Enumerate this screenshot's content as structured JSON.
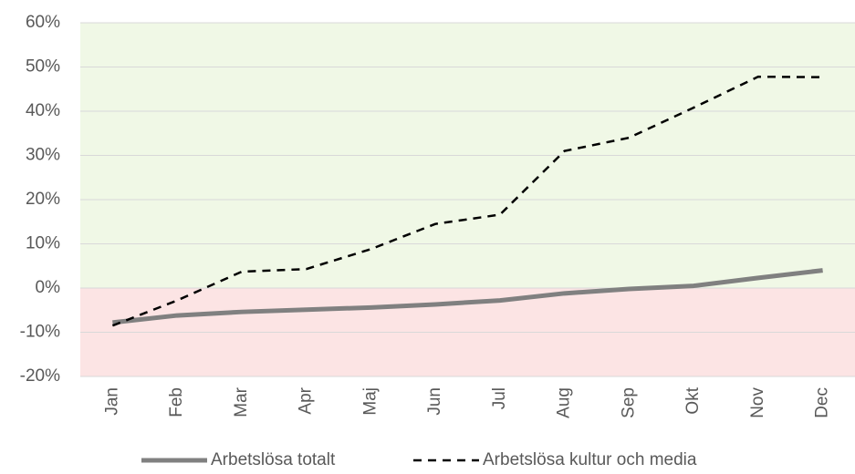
{
  "chart_data": {
    "type": "line",
    "categories": [
      "Jan",
      "Feb",
      "Mar",
      "Apr",
      "Maj",
      "Jun",
      "Jul",
      "Aug",
      "Sep",
      "Okt",
      "Nov",
      "Dec"
    ],
    "series": [
      {
        "name": "Arbetslösa totalt",
        "color": "#808080",
        "dash": false,
        "values": [
          -7.8,
          -6.2,
          -5.4,
          -4.9,
          -4.4,
          -3.7,
          -2.8,
          -1.2,
          -0.2,
          0.5,
          2.3,
          4.0
        ]
      },
      {
        "name": "Arbetslösa kultur och media",
        "color": "#000000",
        "dash": true,
        "values": [
          -8.5,
          -2.8,
          3.7,
          4.3,
          8.8,
          14.5,
          16.6,
          31.0,
          34.0,
          40.8,
          47.8,
          47.7
        ]
      }
    ],
    "ylim": [
      -20,
      60
    ],
    "yticks": [
      {
        "value": -20,
        "label": "-20%"
      },
      {
        "value": -10,
        "label": "-10%"
      },
      {
        "value": 0,
        "label": "0%"
      },
      {
        "value": 10,
        "label": "10%"
      },
      {
        "value": 20,
        "label": "20%"
      },
      {
        "value": 30,
        "label": "30%"
      },
      {
        "value": 40,
        "label": "40%"
      },
      {
        "value": 50,
        "label": "50%"
      },
      {
        "value": 60,
        "label": "60%"
      }
    ],
    "grid": true,
    "legend": "bottom"
  }
}
